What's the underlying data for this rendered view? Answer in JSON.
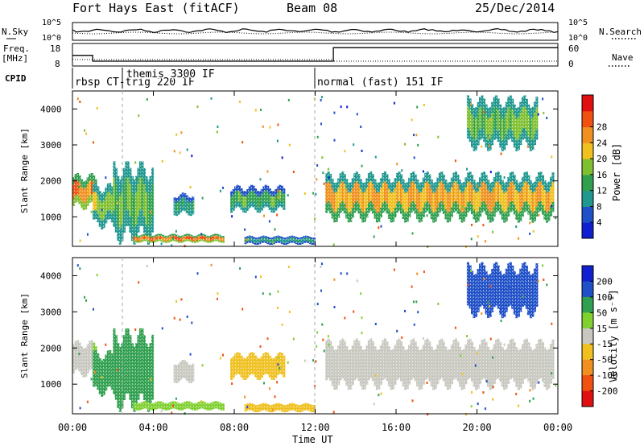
{
  "header": {
    "station": "Fort Hays East (fitACF)",
    "beam": "Beam 08",
    "date": "25/Dec/2014"
  },
  "side_labels": {
    "nsky": "N.Sky",
    "freq": "Freq.",
    "freq_unit": "[MHz]",
    "cpid": "CPID",
    "nsearch": "N.Search",
    "nave": "Nave"
  },
  "top_panels": {
    "noise_ticks_left": [
      "10^5",
      "10^0"
    ],
    "noise_ticks_right": [
      "10^5",
      "10^0"
    ],
    "freq_ticks_left": [
      "18",
      "8"
    ],
    "nave_ticks_right": [
      "60",
      "0"
    ]
  },
  "cpid_labels": [
    {
      "text": "rbsp CT-trig 220 IF",
      "t": 0.6
    },
    {
      "text": "themis 3300 IF",
      "t": 2.5
    },
    {
      "text": "normal (fast) 151 IF",
      "t": 12.0
    }
  ],
  "x_ticks": [
    "00:00",
    "04:00",
    "08:00",
    "12:00",
    "16:00",
    "20:00",
    "00:00"
  ],
  "x_label": "Time UT",
  "power_panel": {
    "ylabel": "Slant Range [km]",
    "yticks": [
      "1000",
      "2000",
      "3000",
      "4000"
    ],
    "colorbar_label": "Power [dB]",
    "colorbar_ticks": [
      "4",
      "8",
      "12",
      "16",
      "20",
      "24",
      "28"
    ],
    "colors": [
      "#1020d0",
      "#2050c8",
      "#209890",
      "#30a050",
      "#80c030",
      "#f0c020",
      "#f09020",
      "#f05010",
      "#e01010"
    ]
  },
  "velocity_panel": {
    "ylabel": "Slant Range [km]",
    "yticks": [
      "1000",
      "2000",
      "3000",
      "4000"
    ],
    "colorbar_label": "Velocity [m s⁻¹]",
    "colorbar_ticks": [
      "200",
      "100",
      "50",
      "15",
      "-15",
      "-50",
      "-100",
      "-200"
    ],
    "colors": [
      "#1020d0",
      "#2050c8",
      "#30a050",
      "#80d030",
      "#c8c8c0",
      "#f0c020",
      "#f09020",
      "#f05010",
      "#e01010"
    ]
  },
  "chart_data": {
    "type": "heatmap",
    "x_range_hours": [
      0,
      24
    ],
    "y_range_km": [
      180,
      4500
    ],
    "cpid_boundaries_hours": [
      2.5,
      12.0
    ],
    "freq_steps": [
      {
        "t0": 0,
        "t1": 1,
        "mhz": 13.5
      },
      {
        "t0": 1,
        "t1": 12.9,
        "mhz": 10.5
      },
      {
        "t0": 12.9,
        "t1": 24,
        "mhz": 17.5
      }
    ],
    "echo_bands": [
      {
        "t0": 0.0,
        "t1": 1.2,
        "r0": 1300,
        "r1": 2100,
        "power": 24,
        "velocity": 10
      },
      {
        "t0": 1.0,
        "t1": 2.6,
        "r0": 800,
        "r1": 1800,
        "power": 16,
        "velocity": 80
      },
      {
        "t0": 2.0,
        "t1": 4.0,
        "r0": 500,
        "r1": 2300,
        "power": 14,
        "velocity": 60
      },
      {
        "t0": 3.0,
        "t1": 7.5,
        "r0": 300,
        "r1": 500,
        "power": 26,
        "velocity": 40
      },
      {
        "t0": 5.0,
        "t1": 6.0,
        "r0": 1100,
        "r1": 1600,
        "power": 10,
        "velocity": 5
      },
      {
        "t0": 7.8,
        "t1": 10.5,
        "r0": 1200,
        "r1": 1800,
        "power": 13,
        "velocity": -30
      },
      {
        "t0": 8.5,
        "t1": 12.0,
        "r0": 250,
        "r1": 450,
        "power": 9,
        "velocity": -40
      },
      {
        "t0": 12.5,
        "t1": 23.8,
        "r0": 1000,
        "r1": 2100,
        "power": 22,
        "velocity": 0
      },
      {
        "t0": 19.5,
        "t1": 23.0,
        "r0": 3000,
        "r1": 4200,
        "power": 15,
        "velocity": 180
      }
    ]
  }
}
